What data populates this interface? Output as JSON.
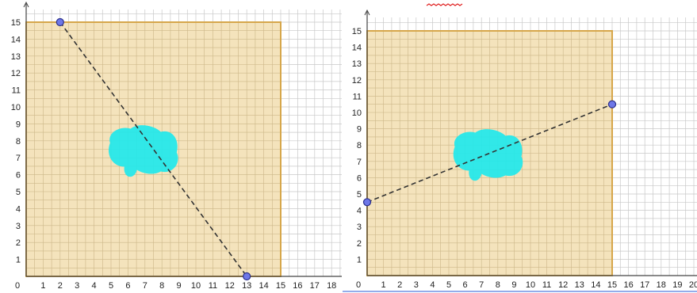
{
  "panels": [
    {
      "id": "left",
      "x_ticks": [
        "0",
        "1",
        "2",
        "3",
        "4",
        "5",
        "6",
        "7",
        "8",
        "9",
        "10",
        "11",
        "12",
        "13",
        "14",
        "15",
        "16",
        "17",
        "18"
      ],
      "y_ticks": [
        "1",
        "2",
        "3",
        "4",
        "5",
        "6",
        "7",
        "8",
        "9",
        "10",
        "11",
        "12",
        "13",
        "14",
        "15"
      ],
      "square": {
        "x": [
          0,
          15
        ],
        "y": [
          0,
          15
        ]
      },
      "points": [
        {
          "x": 2,
          "y": 15
        },
        {
          "x": 13,
          "y": 0
        }
      ],
      "blob_center": {
        "x": 7.0,
        "y": 7.5
      }
    },
    {
      "id": "right",
      "x_ticks": [
        "0",
        "1",
        "2",
        "3",
        "4",
        "5",
        "6",
        "7",
        "8",
        "9",
        "10",
        "11",
        "12",
        "13",
        "14",
        "15",
        "16",
        "17",
        "18",
        "19",
        "20"
      ],
      "y_ticks": [
        "1",
        "2",
        "3",
        "4",
        "5",
        "6",
        "7",
        "8",
        "9",
        "10",
        "11",
        "12",
        "13",
        "14",
        "15"
      ],
      "square": {
        "x": [
          0,
          15
        ],
        "y": [
          0,
          15
        ]
      },
      "points": [
        {
          "x": 0,
          "y": 4.5
        },
        {
          "x": 15,
          "y": 10.5
        }
      ],
      "blob_center": {
        "x": 7.5,
        "y": 7.5
      }
    }
  ],
  "colors": {
    "square_fill": "#f3dfb3",
    "square_stroke": "#d6a64a",
    "grid": "#c8c8c8",
    "axis": "#444444",
    "dash_line": "#333333",
    "point_fill": "#6e77e8",
    "point_stroke": "#2a2f8a",
    "blob": "#1fe8ec",
    "squiggle": "#e02020"
  }
}
